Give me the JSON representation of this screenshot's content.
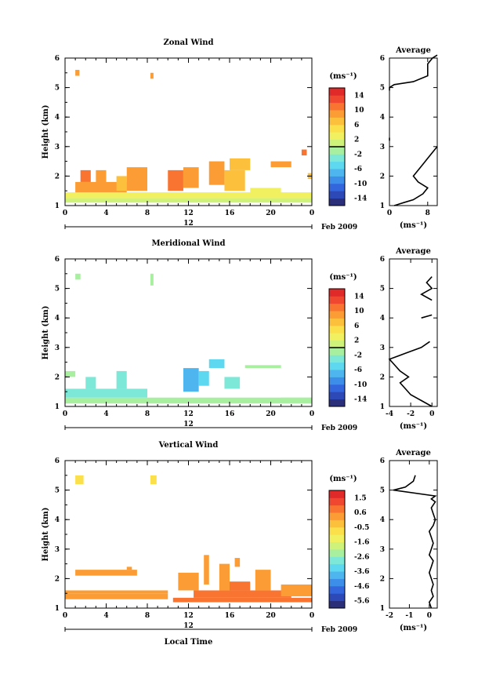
{
  "chart_data": [
    {
      "type": "heatmap",
      "title": "Zonal Wind",
      "ylabel": "Height (km)",
      "xlabel": "",
      "x_ticks": [
        "0",
        "4",
        "8",
        "12",
        "16",
        "20",
        "0"
      ],
      "y_ticks": [
        "1",
        "2",
        "3",
        "4",
        "5",
        "6"
      ],
      "xlim": [
        0,
        24
      ],
      "ylim": [
        1,
        6
      ],
      "day_label": "12",
      "date_label": "Feb 2009",
      "colorbar": {
        "unit": "(ms⁻¹)",
        "ticks": [
          "14",
          "10",
          "6",
          "2",
          "-2",
          "-6",
          "-10",
          "-14"
        ],
        "range": [
          -16,
          16
        ],
        "zero_line": 0,
        "colors": [
          "#2b2f7a",
          "#2d49b8",
          "#3366dd",
          "#3d8ee8",
          "#4fb5ee",
          "#5ed7f0",
          "#7ee8d8",
          "#a8f0a0",
          "#cff27a",
          "#f0f060",
          "#fbe04c",
          "#fcc03c",
          "#fc9c34",
          "#f87430",
          "#f04830",
          "#e02a2a"
        ]
      },
      "cells": [
        {
          "t": [
            1.0,
            1.4
          ],
          "h": [
            5.4,
            5.6
          ],
          "v": 8
        },
        {
          "t": [
            8.3,
            8.6
          ],
          "h": [
            5.3,
            5.5
          ],
          "v": 8
        },
        {
          "t": [
            0.0,
            24.0
          ],
          "h": [
            1.1,
            1.25
          ],
          "v": 0
        },
        {
          "t": [
            0.0,
            24.0
          ],
          "h": [
            1.25,
            1.45
          ],
          "v": 2
        },
        {
          "t": [
            1.0,
            6.0
          ],
          "h": [
            1.45,
            1.8
          ],
          "v": 8
        },
        {
          "t": [
            1.5,
            2.5
          ],
          "h": [
            1.8,
            2.2
          ],
          "v": 10
        },
        {
          "t": [
            3.0,
            4.0
          ],
          "h": [
            1.6,
            2.2
          ],
          "v": 8
        },
        {
          "t": [
            5.0,
            6.0
          ],
          "h": [
            1.5,
            2.0
          ],
          "v": 6
        },
        {
          "t": [
            6.0,
            8.0
          ],
          "h": [
            1.5,
            2.3
          ],
          "v": 8
        },
        {
          "t": [
            10.0,
            11.5
          ],
          "h": [
            1.5,
            2.2
          ],
          "v": 10
        },
        {
          "t": [
            11.5,
            13.0
          ],
          "h": [
            1.6,
            2.3
          ],
          "v": 8
        },
        {
          "t": [
            14.0,
            15.5
          ],
          "h": [
            1.7,
            2.5
          ],
          "v": 8
        },
        {
          "t": [
            15.5,
            17.5
          ],
          "h": [
            1.5,
            2.2
          ],
          "v": 6
        },
        {
          "t": [
            18.0,
            21.0
          ],
          "h": [
            1.4,
            1.6
          ],
          "v": 2
        },
        {
          "t": [
            16.0,
            18.0
          ],
          "h": [
            2.2,
            2.6
          ],
          "v": 6
        },
        {
          "t": [
            20.0,
            22.0
          ],
          "h": [
            2.3,
            2.5
          ],
          "v": 8
        },
        {
          "t": [
            23.0,
            23.5
          ],
          "h": [
            2.7,
            2.9
          ],
          "v": 10
        },
        {
          "t": [
            23.6,
            24.0
          ],
          "h": [
            1.9,
            2.1
          ],
          "v": 6
        }
      ],
      "average": {
        "title": "Average",
        "xlabel": "(ms⁻¹)",
        "x_ticks": [
          "0",
          "8"
        ],
        "xlim": [
          0,
          10
        ],
        "profiles": [
          {
            "h": [
              1.0,
              1.1,
              1.2,
              1.4,
              1.6,
              1.8,
              2.0,
              2.2,
              2.4,
              2.6,
              2.8,
              3.0
            ],
            "v": [
              1,
              3,
              5,
              7,
              8,
              6,
              5,
              6,
              7,
              8,
              9,
              10
            ]
          },
          {
            "h": [
              3.2,
              3.3
            ],
            "v": [
              0,
              0
            ]
          },
          {
            "h": [
              4.9,
              5.0,
              5.1,
              5.2,
              5.4,
              5.6,
              5.8,
              6.0,
              6.1
            ],
            "v": [
              0,
              0,
              1,
              5,
              8,
              8,
              8,
              9,
              10
            ]
          }
        ]
      }
    },
    {
      "type": "heatmap",
      "title": "Meridional Wind",
      "ylabel": "Height (km)",
      "xlabel": "",
      "x_ticks": [
        "0",
        "4",
        "8",
        "12",
        "16",
        "20",
        "0"
      ],
      "y_ticks": [
        "1",
        "2",
        "3",
        "4",
        "5",
        "6"
      ],
      "xlim": [
        0,
        24
      ],
      "ylim": [
        1,
        6
      ],
      "day_label": "12",
      "date_label": "Feb 2009",
      "colorbar": {
        "unit": "(ms⁻¹)",
        "ticks": [
          "14",
          "10",
          "6",
          "2",
          "-2",
          "-6",
          "-10",
          "-14"
        ],
        "range": [
          -16,
          16
        ],
        "zero_line": 0,
        "colors": [
          "#2b2f7a",
          "#2d49b8",
          "#3366dd",
          "#3d8ee8",
          "#4fb5ee",
          "#5ed7f0",
          "#7ee8d8",
          "#a8f0a0",
          "#cff27a",
          "#f0f060",
          "#fbe04c",
          "#fcc03c",
          "#fc9c34",
          "#f87430",
          "#f04830",
          "#e02a2a"
        ]
      },
      "cells": [
        {
          "t": [
            1.0,
            1.5
          ],
          "h": [
            5.3,
            5.5
          ],
          "v": -2
        },
        {
          "t": [
            8.3,
            8.6
          ],
          "h": [
            5.1,
            5.5
          ],
          "v": -1
        },
        {
          "t": [
            0.0,
            24.0
          ],
          "h": [
            1.1,
            1.3
          ],
          "v": -2
        },
        {
          "t": [
            0.0,
            8.0
          ],
          "h": [
            1.3,
            1.6
          ],
          "v": -3
        },
        {
          "t": [
            2.0,
            3.0
          ],
          "h": [
            1.6,
            2.0
          ],
          "v": -4
        },
        {
          "t": [
            0.0,
            1.0
          ],
          "h": [
            2.0,
            2.2
          ],
          "v": -2
        },
        {
          "t": [
            5.0,
            6.0
          ],
          "h": [
            1.6,
            2.2
          ],
          "v": -3
        },
        {
          "t": [
            11.5,
            13.0
          ],
          "h": [
            1.5,
            2.3
          ],
          "v": -7
        },
        {
          "t": [
            13.0,
            14.0
          ],
          "h": [
            1.7,
            2.2
          ],
          "v": -5
        },
        {
          "t": [
            14.0,
            15.5
          ],
          "h": [
            2.3,
            2.6
          ],
          "v": -6
        },
        {
          "t": [
            15.5,
            17.0
          ],
          "h": [
            1.6,
            2.0
          ],
          "v": -3
        },
        {
          "t": [
            17.5,
            21.0
          ],
          "h": [
            2.3,
            2.4
          ],
          "v": -2
        },
        {
          "t": [
            21.0,
            24.0
          ],
          "h": [
            1.1,
            1.3
          ],
          "v": -2
        }
      ],
      "average": {
        "title": "Average",
        "xlabel": "(ms⁻¹)",
        "x_ticks": [
          "-4",
          "-2",
          "0"
        ],
        "xlim": [
          -4,
          0.5
        ],
        "profiles": [
          {
            "h": [
              1.0,
              1.2,
              1.4,
              1.6,
              1.8,
              2.0,
              2.2,
              2.4,
              2.6,
              2.8,
              3.0,
              3.2
            ],
            "v": [
              0,
              -1,
              -2,
              -2.5,
              -3,
              -2.2,
              -3,
              -3.5,
              -4,
              -2.5,
              -1,
              -0.2
            ]
          },
          {
            "h": [
              4.0,
              4.1
            ],
            "v": [
              -1,
              0
            ]
          },
          {
            "h": [
              4.6,
              4.8,
              5.0,
              5.2,
              5.4
            ],
            "v": [
              0,
              -1,
              0,
              -0.5,
              0
            ]
          }
        ]
      }
    },
    {
      "type": "heatmap",
      "title": "Vertical Wind",
      "ylabel": "Height (km)",
      "xlabel": "Local Time",
      "x_ticks": [
        "0",
        "4",
        "8",
        "12",
        "16",
        "20",
        "0"
      ],
      "y_ticks": [
        "1",
        "2",
        "3",
        "4",
        "5",
        "6"
      ],
      "xlim": [
        0,
        24
      ],
      "ylim": [
        1,
        6
      ],
      "day_label": "12",
      "date_label": "Feb 2009",
      "colorbar": {
        "unit": "(ms⁻¹)",
        "ticks": [
          "1.5",
          "0.6",
          "-0.5",
          "-1.6",
          "-2.6",
          "-3.6",
          "-4.6",
          "-5.6"
        ],
        "range": [
          -6,
          2
        ],
        "colors": [
          "#2b2f7a",
          "#2d49b8",
          "#3366dd",
          "#3d8ee8",
          "#4fb5ee",
          "#5ed7f0",
          "#7ee8d8",
          "#a8f0a0",
          "#cff27a",
          "#f0f060",
          "#fbe04c",
          "#fcc03c",
          "#fc9c34",
          "#f87430",
          "#f04830",
          "#e02a2a"
        ]
      },
      "cells": [
        {
          "t": [
            1.0,
            1.8
          ],
          "h": [
            5.2,
            5.5
          ],
          "v": -0.9
        },
        {
          "t": [
            8.3,
            8.9
          ],
          "h": [
            5.2,
            5.5
          ],
          "v": -0.9
        },
        {
          "t": [
            0.0,
            10.0
          ],
          "h": [
            1.3,
            1.5
          ],
          "v": 0
        },
        {
          "t": [
            0.0,
            10.0
          ],
          "h": [
            1.5,
            1.6
          ],
          "v": 0.2
        },
        {
          "t": [
            1.0,
            7.0
          ],
          "h": [
            2.1,
            2.3
          ],
          "v": 0.1
        },
        {
          "t": [
            6.0,
            6.5
          ],
          "h": [
            2.3,
            2.4
          ],
          "v": 0.1
        },
        {
          "t": [
            10.5,
            24.0
          ],
          "h": [
            1.2,
            1.35
          ],
          "v": 0.7
        },
        {
          "t": [
            12.5,
            22.0
          ],
          "h": [
            1.35,
            1.6
          ],
          "v": 0.5
        },
        {
          "t": [
            16.0,
            18.0
          ],
          "h": [
            1.6,
            1.9
          ],
          "v": 0.6
        },
        {
          "t": [
            11.0,
            13.0
          ],
          "h": [
            1.6,
            2.2
          ],
          "v": 0.1
        },
        {
          "t": [
            13.5,
            14.0
          ],
          "h": [
            1.8,
            2.8
          ],
          "v": 0.3
        },
        {
          "t": [
            15.0,
            16.0
          ],
          "h": [
            1.6,
            2.5
          ],
          "v": 0.1
        },
        {
          "t": [
            16.5,
            17.0
          ],
          "h": [
            2.4,
            2.7
          ],
          "v": 0.3
        },
        {
          "t": [
            18.5,
            20.0
          ],
          "h": [
            1.6,
            2.3
          ],
          "v": 0.1
        },
        {
          "t": [
            21.0,
            24.0
          ],
          "h": [
            1.4,
            1.8
          ],
          "v": 0.1
        }
      ],
      "average": {
        "title": "Average",
        "xlabel": "(ms⁻¹)",
        "x_ticks": [
          "-2",
          "-1",
          "0"
        ],
        "xlim": [
          -2,
          0.4
        ],
        "profiles": [
          {
            "h": [
              1.0,
              1.2,
              1.4,
              1.6,
              1.8,
              2.0,
              2.2,
              2.4,
              2.6,
              2.8,
              3.0,
              3.2,
              3.4,
              3.6,
              3.8,
              4.0,
              4.2,
              4.4,
              4.6,
              4.7,
              4.8,
              5.0
            ],
            "v": [
              0.1,
              0.0,
              0.2,
              0.1,
              0.2,
              0.1,
              0.0,
              0.1,
              0.2,
              0.0,
              0.1,
              0.2,
              0.1,
              0.0,
              0.2,
              0.3,
              0.2,
              0.1,
              0.3,
              0.1,
              0.3,
              -1.8
            ]
          },
          {
            "h": [
              5.0,
              5.1,
              5.3,
              5.5
            ],
            "v": [
              -1.8,
              -1.2,
              -0.8,
              -0.7
            ]
          }
        ]
      }
    }
  ]
}
